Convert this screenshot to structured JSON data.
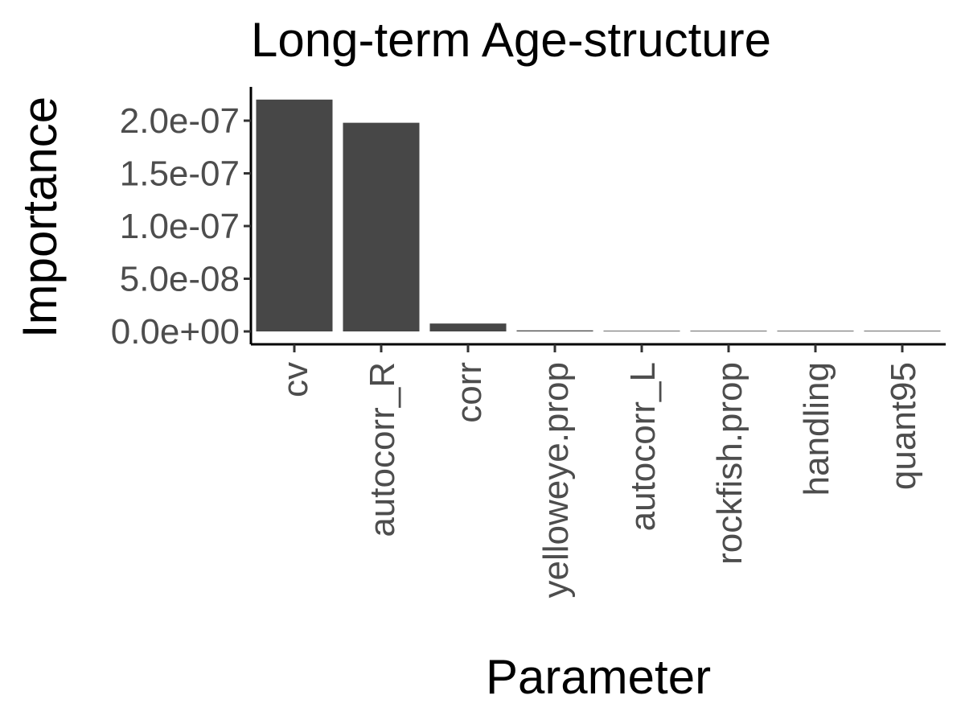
{
  "chart_data": {
    "type": "bar",
    "title": "Long-term Age-structure",
    "xlabel": "Parameter",
    "ylabel": "Importance",
    "categories": [
      "cv",
      "autocorr_R",
      "corr",
      "yelloweye.prop",
      "autocorr_L",
      "rockfish.prop",
      "handling",
      "quant95"
    ],
    "values": [
      2.2e-07,
      1.98e-07,
      7.5e-09,
      1e-09,
      6e-10,
      5e-10,
      4e-10,
      3e-10
    ],
    "ylim": [
      0,
      2.4e-07
    ],
    "y_ticks": [
      0,
      5e-08,
      1e-07,
      1.5e-07,
      2e-07
    ],
    "y_tick_labels": [
      "0.0e+00",
      "5.0e-08",
      "1.0e-07",
      "1.5e-07",
      "2.0e-07"
    ],
    "bar_color": "#474747",
    "grid": false,
    "legend": "none"
  }
}
